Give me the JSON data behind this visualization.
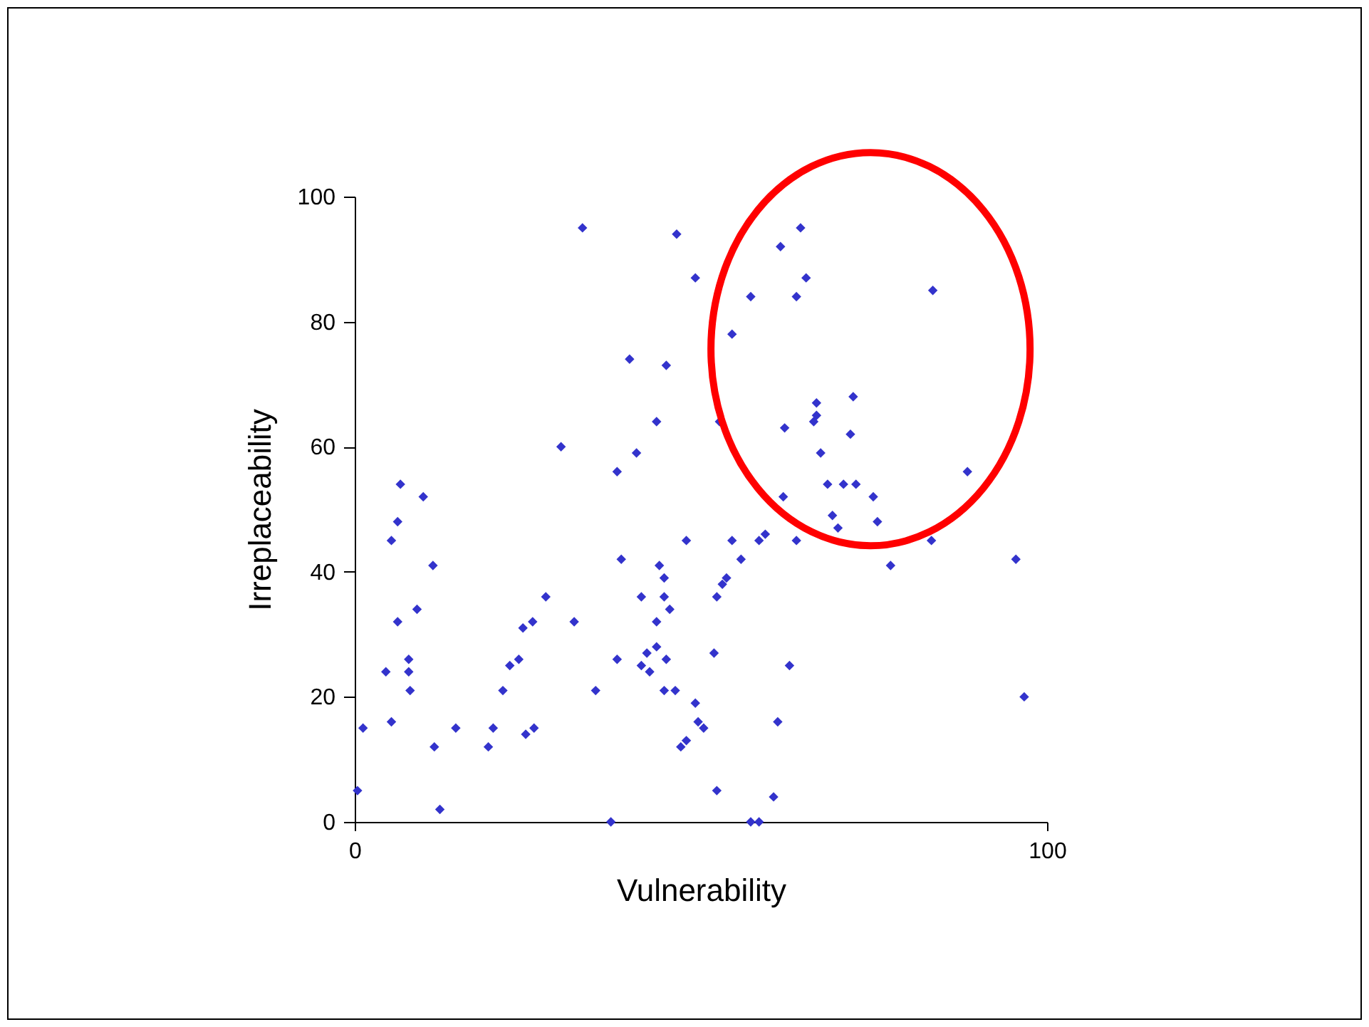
{
  "chart_data": {
    "type": "scatter",
    "xlabel": "Vulnerability",
    "ylabel": "Irreplaceability",
    "xlim": [
      0,
      100
    ],
    "ylim": [
      0,
      100
    ],
    "xticks": [
      0,
      100
    ],
    "yticks": [
      0,
      20,
      40,
      60,
      80,
      100
    ],
    "grid": false,
    "legend": false,
    "marker": "diamond",
    "series": [
      {
        "color": "#3333cc",
        "x": [
          0.4,
          1.2,
          4.5,
          5.3,
          6.2,
          6.6,
          6.2,
          5.3,
          7.8,
          7.8,
          8,
          9,
          9.9,
          11.3,
          11.5,
          12.3,
          14.6,
          19.3,
          20,
          21.4,
          22.4,
          23.7,
          24.3,
          24.7,
          25.7,
          25.9,
          27.6,
          29.8,
          31.7,
          32.9,
          34.8,
          37,
          37.9,
          38.5,
          37.9,
          39.7,
          40.7,
          41.4,
          41.4,
          42.2,
          42.6,
          43.6,
          43.6,
          44,
          44.7,
          44.7,
          45.5,
          43.6,
          45,
          44.7,
          46.3,
          45,
          46.5,
          47.1,
          47.9,
          47.9,
          49.2,
          49.2,
          49.6,
          50.4,
          51.9,
          52.3,
          52.7,
          52.3,
          53.1,
          53.7,
          54.5,
          54.5,
          55.8,
          57.2,
          57.2,
          58.4,
          58.4,
          59.3,
          60.5,
          61.1,
          61.5,
          61.9,
          62.1,
          62.8,
          63.8,
          63.8,
          64.4,
          65.2,
          66.3,
          66.7,
          66.7,
          67.3,
          68.3,
          69,
          69.8,
          70.6,
          71.6,
          72,
          72.4,
          74.9,
          75.5,
          77.4,
          83.5,
          83.3,
          88.5,
          95.5,
          96.7
        ],
        "values": [
          5,
          15,
          24,
          45,
          48,
          54,
          32,
          16,
          26,
          24,
          21,
          34,
          52,
          41,
          12,
          2,
          15,
          12,
          15,
          21,
          25,
          26,
          31,
          14,
          32,
          15,
          36,
          60,
          32,
          95,
          21,
          0,
          56,
          42,
          26,
          74,
          59,
          36,
          25,
          27,
          24,
          64,
          32,
          41,
          39,
          36,
          34,
          28,
          26,
          21,
          21,
          73,
          94,
          12,
          13,
          45,
          87,
          19,
          16,
          15,
          27,
          5,
          64,
          36,
          38,
          39,
          45,
          78,
          42,
          84,
          0,
          0,
          45,
          46,
          4,
          16,
          92,
          52,
          63,
          25,
          84,
          45,
          95,
          87,
          64,
          67,
          65,
          59,
          54,
          49,
          47,
          54,
          62,
          68,
          54,
          52,
          48,
          41,
          85,
          45,
          56,
          42,
          20
        ]
      }
    ]
  }
}
